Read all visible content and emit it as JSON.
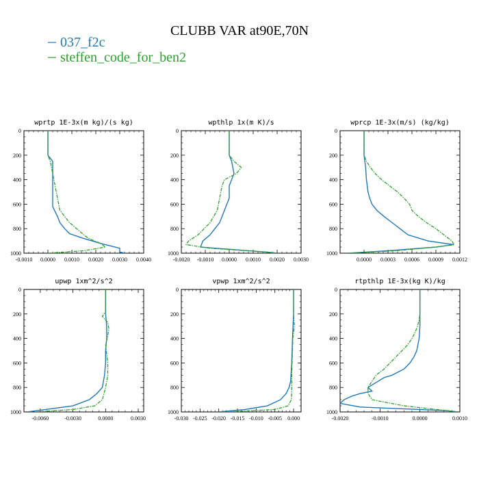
{
  "title": "CLUBB VAR at90E,70N",
  "legend": [
    {
      "name": "037_f2c",
      "color": "#1f77b4"
    },
    {
      "name": "steffen_code_for_ben2",
      "color": "#2ca02c"
    }
  ],
  "chart_data": [
    {
      "type": "line",
      "title": "wprtp  1E-3x(m kg)/(s kg)",
      "xlim": [
        -0.001,
        0.004
      ],
      "ylim": [
        1000,
        0
      ],
      "xticks": [
        "-0.0010",
        "0.0000",
        "0.0010",
        "0.0020",
        "0.0030",
        "0.0040"
      ],
      "yticks": [
        "0",
        "200",
        "400",
        "600",
        "800",
        "1000"
      ],
      "series": [
        {
          "name": "037_f2c",
          "y": [
            0,
            200,
            250,
            350,
            450,
            550,
            620,
            700,
            750,
            800,
            840,
            880,
            920,
            960,
            990,
            1000
          ],
          "x": [
            0,
            0,
            0.0002,
            0.0002,
            0.0002,
            0.0002,
            0.0002,
            0.0004,
            0.0005,
            0.0007,
            0.0009,
            0.0015,
            0.0022,
            0.003,
            0.003,
            0.0032
          ]
        },
        {
          "name": "steffen_code_for_ben2",
          "y": [
            0,
            200,
            250,
            350,
            450,
            550,
            650,
            750,
            800,
            850,
            880,
            920,
            950,
            980,
            1000
          ],
          "x": [
            0,
            0,
            0.0001,
            0.0002,
            0.0003,
            0.0004,
            0.0005,
            0.0009,
            0.0012,
            0.0015,
            0.0017,
            0.0022,
            0.0024,
            0.0015,
            0
          ]
        }
      ]
    },
    {
      "type": "line",
      "title": "wpthlp  1x(m K)/s",
      "xlim": [
        -0.002,
        0.003
      ],
      "ylim": [
        1000,
        0
      ],
      "xticks": [
        "-0.0020",
        "-0.0010",
        "0.0000",
        "0.0010",
        "0.0020",
        "0.0030"
      ],
      "yticks": [
        "0",
        "200",
        "400",
        "600",
        "800",
        "1000"
      ],
      "series": [
        {
          "name": "037_f2c",
          "y": [
            0,
            200,
            250,
            350,
            450,
            550,
            650,
            750,
            800,
            850,
            900,
            950,
            990,
            1000
          ],
          "x": [
            0,
            0,
            0.0001,
            0.0002,
            0,
            0,
            -0.0002,
            -0.0004,
            -0.0006,
            -0.0008,
            -0.0011,
            -0.0012,
            0.0015,
            0.002
          ]
        },
        {
          "name": "steffen_code_for_ben2",
          "y": [
            0,
            200,
            250,
            300,
            350,
            400,
            450,
            550,
            650,
            750,
            850,
            900,
            930,
            960,
            990,
            1000
          ],
          "x": [
            0,
            0,
            0.0002,
            0.0005,
            0.0003,
            -0.0002,
            -0.0003,
            -0.0004,
            -0.0005,
            -0.0008,
            -0.0013,
            -0.0017,
            -0.0018,
            -0.0008,
            0.0015,
            0.002
          ]
        }
      ]
    },
    {
      "type": "line",
      "title": "wprcp  1E-3x(m/s) (kg/kg)",
      "xlim": [
        -0.0003,
        0.0012
      ],
      "ylim": [
        1000,
        0
      ],
      "xticks": [
        "0.0000",
        "0.0003",
        "0.0006",
        "0.0009",
        "0.0012"
      ],
      "yticks": [
        "0",
        "200",
        "400",
        "600",
        "800",
        "1000"
      ],
      "series": [
        {
          "name": "037_f2c",
          "y": [
            0,
            200,
            300,
            400,
            500,
            550,
            600,
            650,
            700,
            750,
            800,
            850,
            900,
            930,
            950,
            980,
            1000
          ],
          "x": [
            0,
            0,
            2e-05,
            3e-05,
            5e-05,
            7e-05,
            0.0001,
            0.00016,
            0.00025,
            0.00035,
            0.00045,
            0.00055,
            0.0008,
            0.00112,
            0.0009,
            0.0003,
            -0.0002
          ]
        },
        {
          "name": "steffen_code_for_ben2",
          "y": [
            0,
            200,
            250,
            300,
            350,
            400,
            450,
            500,
            550,
            600,
            650,
            700,
            750,
            800,
            850,
            900,
            930,
            950,
            980,
            1000
          ],
          "x": [
            0,
            0,
            3e-05,
            8e-05,
            0.00014,
            0.00022,
            0.00032,
            0.00042,
            0.0005,
            0.00057,
            0.0006,
            0.00068,
            0.00078,
            0.0009,
            0.001,
            0.0011,
            0.00113,
            0.0009,
            0.0004,
            -0.0002
          ]
        }
      ]
    },
    {
      "type": "line",
      "title": "upwp   1xm^2/s^2",
      "xlim": [
        -0.0075,
        0.0035
      ],
      "ylim": [
        1000,
        0
      ],
      "xticks": [
        "-0.0060",
        "-0.0030",
        "0.0000",
        "0.0030"
      ],
      "yticks": [
        "0",
        "200",
        "400",
        "600",
        "800",
        "1000"
      ],
      "series": [
        {
          "name": "037_f2c",
          "y": [
            0,
            200,
            300,
            400,
            500,
            600,
            700,
            800,
            850,
            900,
            950,
            980,
            1000
          ],
          "x": [
            0,
            0,
            0.0001,
            0.0001,
            0,
            0,
            -0.0001,
            -0.0003,
            -0.0008,
            -0.0015,
            -0.003,
            -0.0055,
            -0.0072
          ]
        },
        {
          "name": "steffen_code_for_ben2",
          "y": [
            0,
            180,
            220,
            270,
            320,
            380,
            450,
            600,
            700,
            800,
            900,
            950,
            980,
            1000
          ],
          "x": [
            0,
            0,
            -0.0003,
            0.0002,
            0.0003,
            0.0002,
            0,
            0.0002,
            0.0002,
            0,
            -0.0003,
            -0.001,
            -0.003,
            -0.0065
          ]
        }
      ]
    },
    {
      "type": "line",
      "title": "vpwp   1xm^2/s^2",
      "xlim": [
        -0.03,
        0.002
      ],
      "ylim": [
        1000,
        0
      ],
      "xticks": [
        "-0.030",
        "-0.025",
        "-0.020",
        "-0.015",
        "-0.010",
        "-0.005",
        "0.000"
      ],
      "yticks": [
        "0",
        "200",
        "400",
        "600",
        "800",
        "1000"
      ],
      "series": [
        {
          "name": "037_f2c",
          "y": [
            0,
            200,
            400,
            600,
            750,
            800,
            850,
            900,
            950,
            980,
            1000
          ],
          "x": [
            0,
            0,
            -0.0003,
            -0.0005,
            -0.0008,
            -0.0012,
            -0.002,
            -0.0035,
            -0.007,
            -0.013,
            -0.02
          ]
        },
        {
          "name": "steffen_code_for_ben2",
          "y": [
            0,
            200,
            300,
            400,
            500,
            600,
            700,
            800,
            900,
            950,
            980,
            1000
          ],
          "x": [
            0,
            0,
            0.0002,
            -0.0002,
            -0.0003,
            -0.0004,
            -0.0005,
            -0.0005,
            -0.0006,
            -0.0015,
            -0.005,
            -0.018
          ]
        }
      ]
    },
    {
      "type": "line",
      "title": "rtpthlp  1E-3x(kg K)/kg",
      "xlim": [
        -0.002,
        0.001
      ],
      "ylim": [
        1000,
        0
      ],
      "xticks": [
        "-0.0020",
        "-0.0010",
        "0.0000",
        "0.0010"
      ],
      "yticks": [
        "0",
        "200",
        "400",
        "600",
        "800",
        "1000"
      ],
      "series": [
        {
          "name": "037_f2c",
          "y": [
            0,
            200,
            300,
            400,
            500,
            550,
            600,
            650,
            700,
            720,
            760,
            800,
            830,
            850,
            870,
            900,
            930,
            960,
            990,
            1000
          ],
          "x": [
            0,
            0,
            0,
            -2e-05,
            -8e-05,
            -0.00015,
            -0.00025,
            -0.0004,
            -0.0007,
            -0.0009,
            -0.0011,
            -0.0013,
            -0.0012,
            -0.0015,
            -0.0017,
            -0.0019,
            -0.002,
            -0.0015,
            0.0007,
            0.00095
          ]
        },
        {
          "name": "steffen_code_for_ben2",
          "y": [
            0,
            200,
            250,
            300,
            350,
            400,
            450,
            500,
            550,
            600,
            650,
            700,
            750,
            800,
            850,
            900,
            950,
            990,
            1000
          ],
          "x": [
            0,
            0,
            -2e-05,
            -6e-05,
            -0.00012,
            -0.0002,
            -0.0003,
            -0.00045,
            -0.0006,
            -0.00075,
            -0.0009,
            -0.0011,
            -0.0012,
            -0.0013,
            -0.0013,
            -0.0012,
            -0.0004,
            0.0007,
            0.00095
          ]
        }
      ]
    }
  ]
}
